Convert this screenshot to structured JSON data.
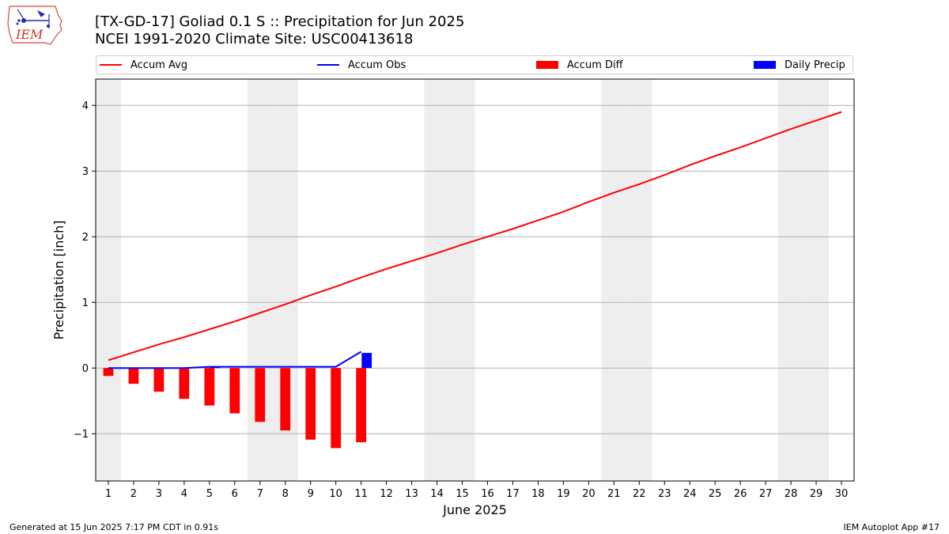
{
  "header": {
    "logo_text": "IEM",
    "title_line1": "[TX-GD-17] Goliad 0.1 S :: Precipitation for Jun 2025",
    "title_line2": "NCEI 1991-2020 Climate Site: USC00413618"
  },
  "legend": {
    "items": [
      {
        "label": "Accum Avg",
        "kind": "line",
        "color": "#ff0000"
      },
      {
        "label": "Accum Obs",
        "kind": "line",
        "color": "#0000ff"
      },
      {
        "label": "Accum Diff",
        "kind": "bar",
        "color": "#ff0000"
      },
      {
        "label": "Daily Precip",
        "kind": "bar",
        "color": "#0000ff"
      }
    ],
    "placement": "top, above plot"
  },
  "footer": {
    "generated": "Generated at 15 Jun 2025 7:17 PM CDT in 0.91s",
    "app": "IEM Autoplot App #17"
  },
  "colors": {
    "avg": "#ff0000",
    "obs": "#0000ff",
    "diff": "#ff0000",
    "daily": "#0000ff",
    "weekend": "#eeeeee",
    "grid": "#b0b0b0"
  },
  "chart_data": {
    "type": "line",
    "xlabel": "June 2025",
    "ylabel": "Precipitation [inch]",
    "x": [
      1,
      2,
      3,
      4,
      5,
      6,
      7,
      8,
      9,
      10,
      11,
      12,
      13,
      14,
      15,
      16,
      17,
      18,
      19,
      20,
      21,
      22,
      23,
      24,
      25,
      26,
      27,
      28,
      29,
      30
    ],
    "ylim": [
      -1.72,
      4.4
    ],
    "yticks": [
      -1,
      0,
      1,
      2,
      3,
      4
    ],
    "ytick_labels": [
      "−1",
      "0",
      "1",
      "2",
      "3",
      "4"
    ],
    "grid": "y",
    "weekend_days": [
      1,
      7,
      8,
      14,
      15,
      21,
      22,
      28,
      29
    ],
    "series": [
      {
        "name": "Accum Avg",
        "type": "line",
        "color": "#ff0000",
        "values": [
          0.12,
          0.24,
          0.36,
          0.47,
          0.59,
          0.71,
          0.84,
          0.97,
          1.11,
          1.24,
          1.38,
          1.51,
          1.63,
          1.75,
          1.88,
          2.0,
          2.12,
          2.25,
          2.38,
          2.53,
          2.67,
          2.8,
          2.94,
          3.09,
          3.23,
          3.36,
          3.5,
          3.64,
          3.77,
          3.9
        ]
      },
      {
        "name": "Accum Obs",
        "type": "line",
        "color": "#0000ff",
        "x": [
          1,
          2,
          3,
          4,
          5,
          6,
          7,
          8,
          9,
          10,
          11
        ],
        "values": [
          0,
          0,
          0,
          0,
          0.02,
          0.02,
          0.02,
          0.02,
          0.02,
          0.02,
          0.25
        ]
      },
      {
        "name": "Accum Diff",
        "type": "bar",
        "color": "#ff0000",
        "x": [
          1,
          2,
          3,
          4,
          5,
          6,
          7,
          8,
          9,
          10,
          11
        ],
        "values": [
          -0.12,
          -0.24,
          -0.36,
          -0.47,
          -0.57,
          -0.69,
          -0.82,
          -0.95,
          -1.09,
          -1.22,
          -1.13
        ]
      },
      {
        "name": "Daily Precip",
        "type": "bar",
        "color": "#0000ff",
        "x": [
          1,
          2,
          3,
          4,
          5,
          6,
          7,
          8,
          9,
          10,
          11
        ],
        "values": [
          0,
          0,
          0,
          0,
          0.02,
          0,
          0,
          0,
          0,
          0,
          0.23
        ]
      }
    ]
  }
}
